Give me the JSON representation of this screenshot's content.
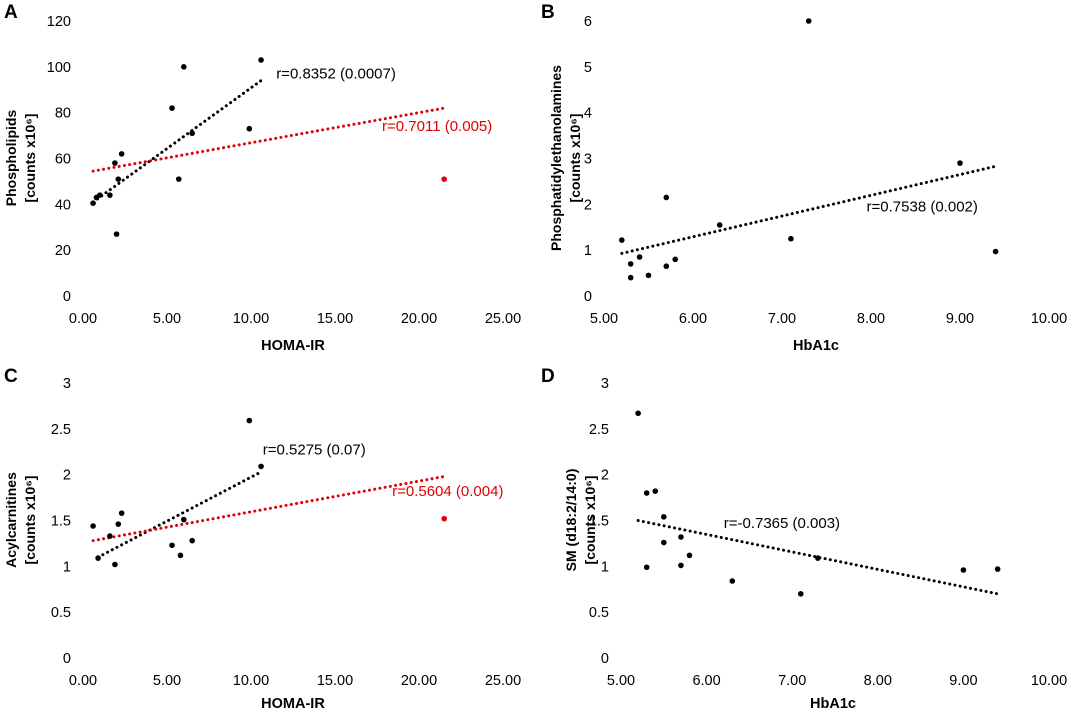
{
  "chart_data": [
    {
      "panel": "A",
      "type": "scatter",
      "xlabel": "HOMA-IR",
      "ylabel_line1": "Phospholipids",
      "ylabel_line2": "[counts x10⁶]",
      "xlim": [
        0,
        25
      ],
      "ylim": [
        0,
        120
      ],
      "xticks": [
        0,
        5,
        10,
        15,
        20,
        25
      ],
      "yticks": [
        0,
        20,
        40,
        60,
        80,
        100,
        120
      ],
      "xtick_labels": [
        "0.00",
        "5.00",
        "10.00",
        "15.00",
        "20.00",
        "25.00"
      ],
      "ytick_labels": [
        "0",
        "20",
        "40",
        "60",
        "80",
        "100",
        "120"
      ],
      "series": [
        {
          "name": "points",
          "color": "#000000",
          "x": [
            0.6,
            0.8,
            1.0,
            1.6,
            1.9,
            2.0,
            2.1,
            2.3,
            5.3,
            5.7,
            6.0,
            6.5,
            9.9,
            10.6
          ],
          "y": [
            40.5,
            43,
            44,
            44,
            58,
            27,
            51,
            62,
            82,
            51,
            100,
            71,
            73,
            103
          ]
        },
        {
          "name": "outlier",
          "color": "#e00000",
          "x": [
            21.5
          ],
          "y": [
            51
          ]
        }
      ],
      "trendlines": [
        {
          "color": "#000000",
          "x": [
            0.6,
            10.6
          ],
          "y": [
            41,
            94
          ]
        },
        {
          "color": "#e00000",
          "x": [
            0.6,
            21.5
          ],
          "y": [
            54.5,
            82
          ]
        }
      ],
      "annotations": [
        {
          "text": "r=0.8352 (0.0007)",
          "color": "#000000",
          "x": 11.5,
          "y": 95
        },
        {
          "text": "r=0.7011 (0.005)",
          "color": "#e00000",
          "x": 17.8,
          "y": 72
        }
      ]
    },
    {
      "panel": "B",
      "type": "scatter",
      "xlabel": "HbA1c",
      "ylabel_line1": "Phosphatidylethanolamines",
      "ylabel_line2": "[counts x10⁶]",
      "xlim": [
        5,
        10
      ],
      "ylim": [
        0,
        6
      ],
      "xticks": [
        5,
        6,
        7,
        8,
        9,
        10
      ],
      "yticks": [
        0,
        1,
        2,
        3,
        4,
        5,
        6
      ],
      "xtick_labels": [
        "5.00",
        "6.00",
        "7.00",
        "8.00",
        "9.00",
        "10.00"
      ],
      "ytick_labels": [
        "0",
        "1",
        "2",
        "3",
        "4",
        "5",
        "6"
      ],
      "series": [
        {
          "name": "points",
          "color": "#000000",
          "x": [
            5.2,
            5.3,
            5.3,
            5.4,
            5.5,
            5.7,
            5.7,
            5.8,
            6.3,
            7.1,
            7.3,
            9.0,
            9.4
          ],
          "y": [
            1.22,
            0.7,
            0.4,
            0.85,
            0.45,
            2.15,
            0.65,
            0.8,
            1.55,
            1.25,
            6.0,
            2.9,
            0.97
          ]
        },
        {
          "name": "outlier",
          "color": "#e00000",
          "x": [],
          "y": []
        }
      ],
      "trendlines": [
        {
          "color": "#000000",
          "x": [
            5.2,
            9.4
          ],
          "y": [
            0.93,
            2.83
          ]
        }
      ],
      "annotations": [
        {
          "text": "r=0.7538 (0.002)",
          "color": "#000000",
          "x": 7.95,
          "y": 1.84
        }
      ]
    },
    {
      "panel": "C",
      "type": "scatter",
      "xlabel": "HOMA-IR",
      "ylabel_line1": "Acylcarnitines",
      "ylabel_line2": "[counts x10⁶]",
      "xlim": [
        0,
        25
      ],
      "ylim": [
        0,
        3
      ],
      "xticks": [
        0,
        5,
        10,
        15,
        20,
        25
      ],
      "yticks": [
        0,
        0.5,
        1,
        1.5,
        2,
        2.5,
        3
      ],
      "xtick_labels": [
        "0.00",
        "5.00",
        "10.00",
        "15.00",
        "20.00",
        "25.00"
      ],
      "ytick_labels": [
        "0",
        "0.5",
        "1",
        "1.5",
        "2",
        "2.5",
        "3"
      ],
      "series": [
        {
          "name": "points",
          "color": "#000000",
          "x": [
            0.6,
            0.9,
            1.6,
            1.9,
            2.1,
            2.3,
            5.3,
            5.8,
            6.0,
            6.5,
            9.9,
            10.6
          ],
          "y": [
            1.44,
            1.09,
            1.33,
            1.02,
            1.46,
            1.58,
            1.23,
            1.12,
            1.51,
            1.28,
            2.59,
            2.09
          ]
        },
        {
          "name": "outlier",
          "color": "#e00000",
          "x": [
            21.5
          ],
          "y": [
            1.52
          ]
        }
      ],
      "trendlines": [
        {
          "color": "#000000",
          "x": [
            0.9,
            10.6
          ],
          "y": [
            1.1,
            2.03
          ]
        },
        {
          "color": "#e00000",
          "x": [
            0.6,
            21.5
          ],
          "y": [
            1.28,
            1.98
          ]
        }
      ],
      "annotations": [
        {
          "text": "r=0.5275 (0.07)",
          "color": "#000000",
          "x": 10.7,
          "y": 2.22
        },
        {
          "text": "r=0.5604 (0.004)",
          "color": "#e00000",
          "x": 18.4,
          "y": 1.77
        }
      ]
    },
    {
      "panel": "D",
      "type": "scatter",
      "xlabel": "HbA1c",
      "ylabel_line1": "SM (d18:2/14:0)",
      "ylabel_line2": "[counts x10⁶]",
      "xlim": [
        5,
        10
      ],
      "ylim": [
        0,
        3
      ],
      "xticks": [
        5,
        6,
        7,
        8,
        9,
        10
      ],
      "yticks": [
        0,
        0.5,
        1,
        1.5,
        2,
        2.5,
        3
      ],
      "xtick_labels": [
        "5.00",
        "6.00",
        "7.00",
        "8.00",
        "9.00",
        "10.00"
      ],
      "ytick_labels": [
        "0",
        "0.5",
        "1",
        "1.5",
        "2",
        "2.5",
        "3"
      ],
      "series": [
        {
          "name": "points",
          "color": "#000000",
          "x": [
            5.2,
            5.3,
            5.3,
            5.4,
            5.5,
            5.5,
            5.7,
            5.7,
            5.8,
            6.3,
            7.1,
            7.3,
            9.0,
            9.4
          ],
          "y": [
            2.67,
            1.8,
            0.99,
            1.82,
            1.54,
            1.26,
            1.32,
            1.01,
            1.12,
            0.84,
            0.7,
            1.09,
            0.96,
            0.97
          ]
        },
        {
          "name": "outlier",
          "color": "#e00000",
          "x": [],
          "y": []
        }
      ],
      "trendlines": [
        {
          "color": "#000000",
          "x": [
            5.2,
            9.4
          ],
          "y": [
            1.5,
            0.7
          ]
        }
      ],
      "annotations": [
        {
          "text": "r=-0.7365 (0.003)",
          "color": "#000000",
          "x": 6.2,
          "y": 1.42
        }
      ]
    }
  ]
}
